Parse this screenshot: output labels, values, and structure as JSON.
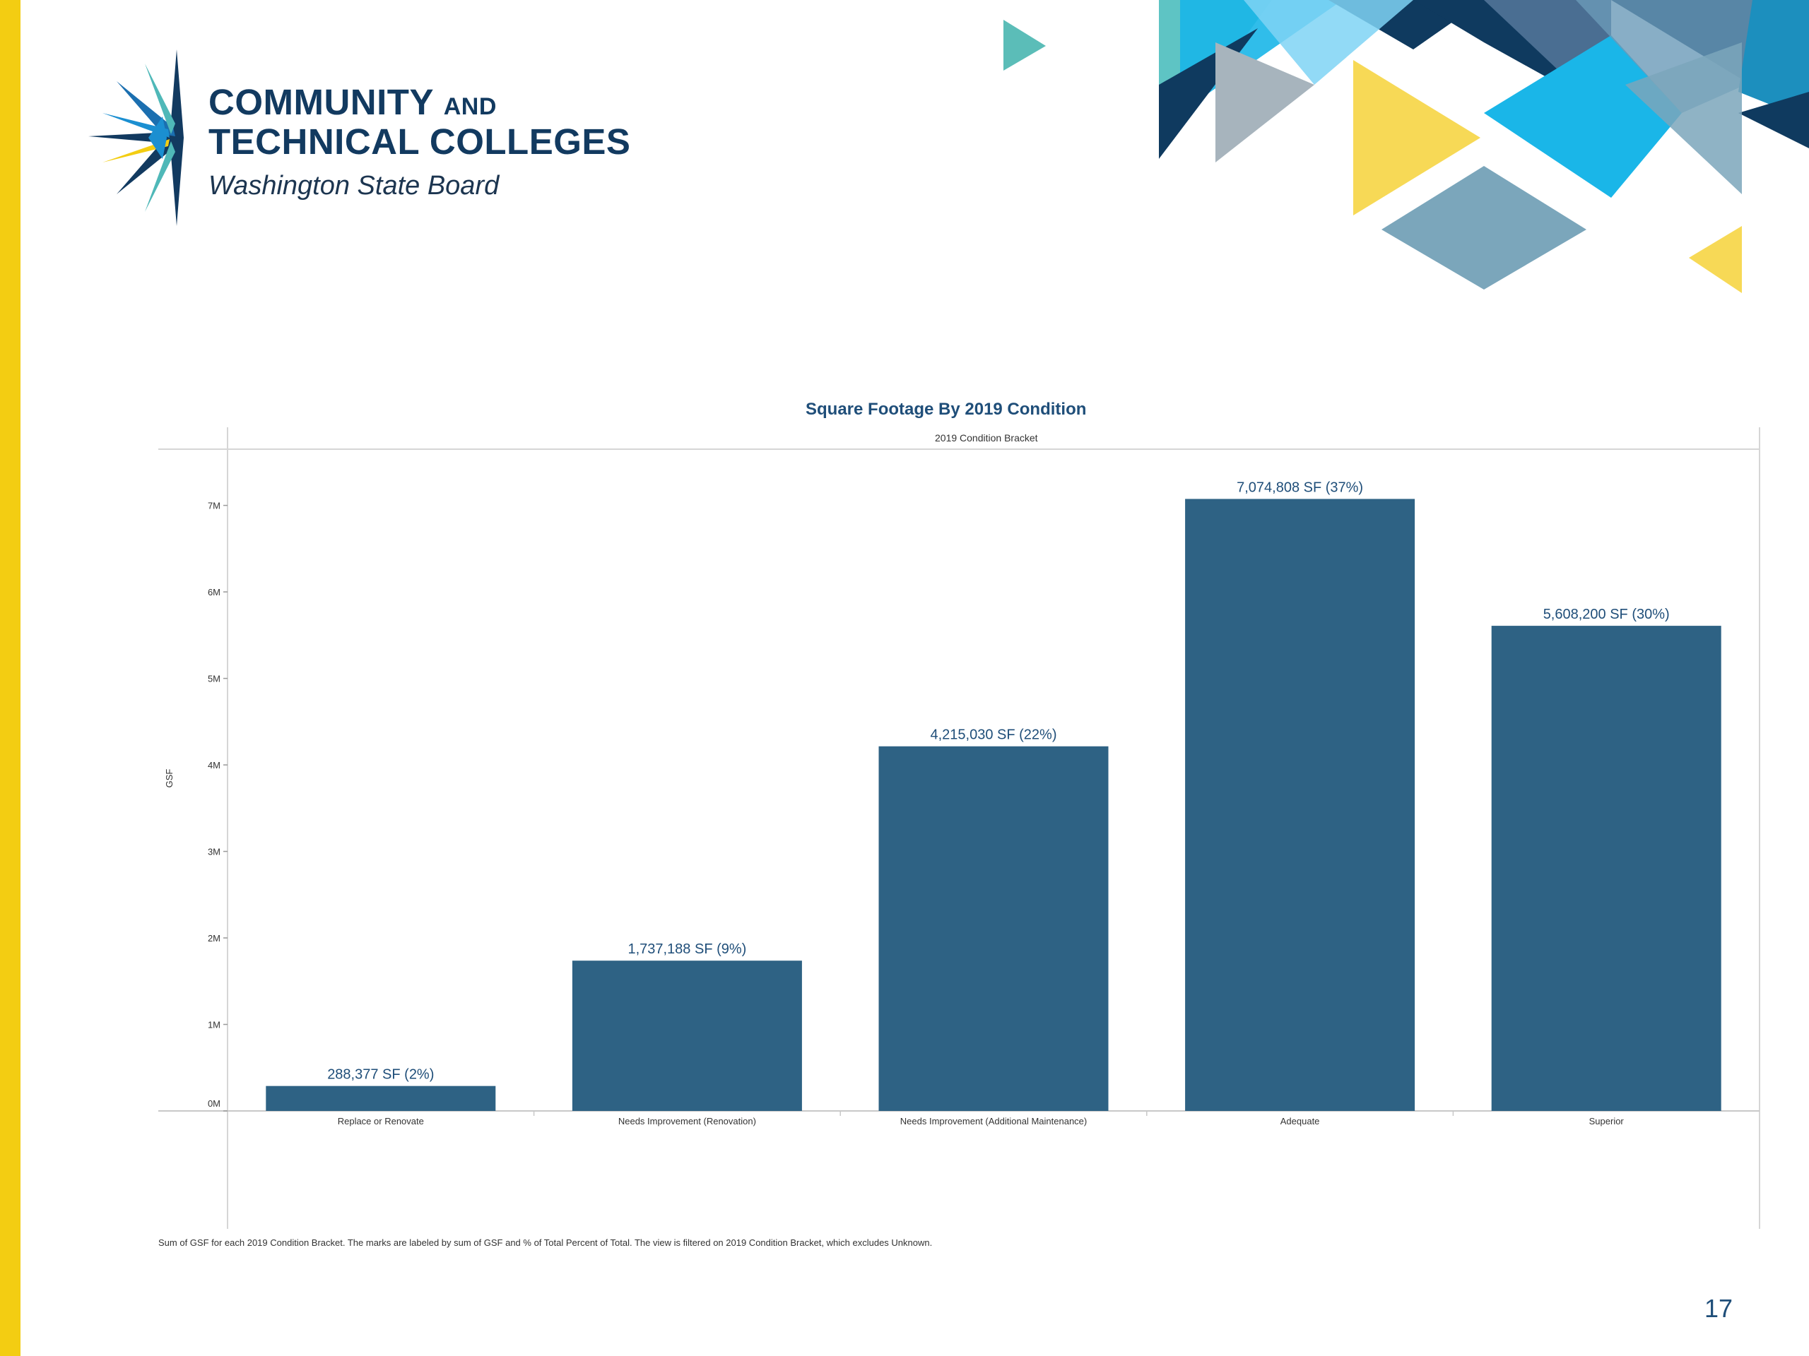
{
  "slide": {
    "page_number": "17",
    "accent_color": "#f3cd12"
  },
  "logo": {
    "line1": "COMMUNITY",
    "line1_small": "AND",
    "line2": "TECHNICAL COLLEGES",
    "line3": "Washington State Board",
    "icon": "compass-star-icon"
  },
  "chart_data": {
    "type": "bar",
    "title": "Square Footage By 2019 Condition",
    "subtitle": "2019 Condition Bracket",
    "ylabel": "GSF",
    "xlabel": "",
    "categories": [
      "Replace or Renovate",
      "Needs Improvement (Renovation)",
      "Needs Improvement (Additional Maintenance)",
      "Adequate",
      "Superior"
    ],
    "values": [
      288377,
      1737188,
      4215030,
      7074808,
      5608200
    ],
    "data_labels": [
      "288,377 SF (2%)",
      "1,737,188 SF (9%)",
      "4,215,030 SF (22%)",
      "7,074,808 SF (37%)",
      "5,608,200 SF (30%)"
    ],
    "y_ticks": [
      0,
      1000000,
      2000000,
      3000000,
      4000000,
      5000000,
      6000000,
      7000000
    ],
    "y_tick_labels": [
      "0M",
      "1M",
      "2M",
      "3M",
      "4M",
      "5M",
      "6M",
      "7M"
    ],
    "ylim": [
      0,
      7650000
    ],
    "bar_color": "#2e6284",
    "label_color": "#1f4e79",
    "grid": false,
    "footnote": "Sum of GSF for each 2019 Condition Bracket.  The marks are labeled by sum of GSF and % of Total Percent of Total. The view is filtered on 2019 Condition Bracket, which excludes Unknown."
  }
}
